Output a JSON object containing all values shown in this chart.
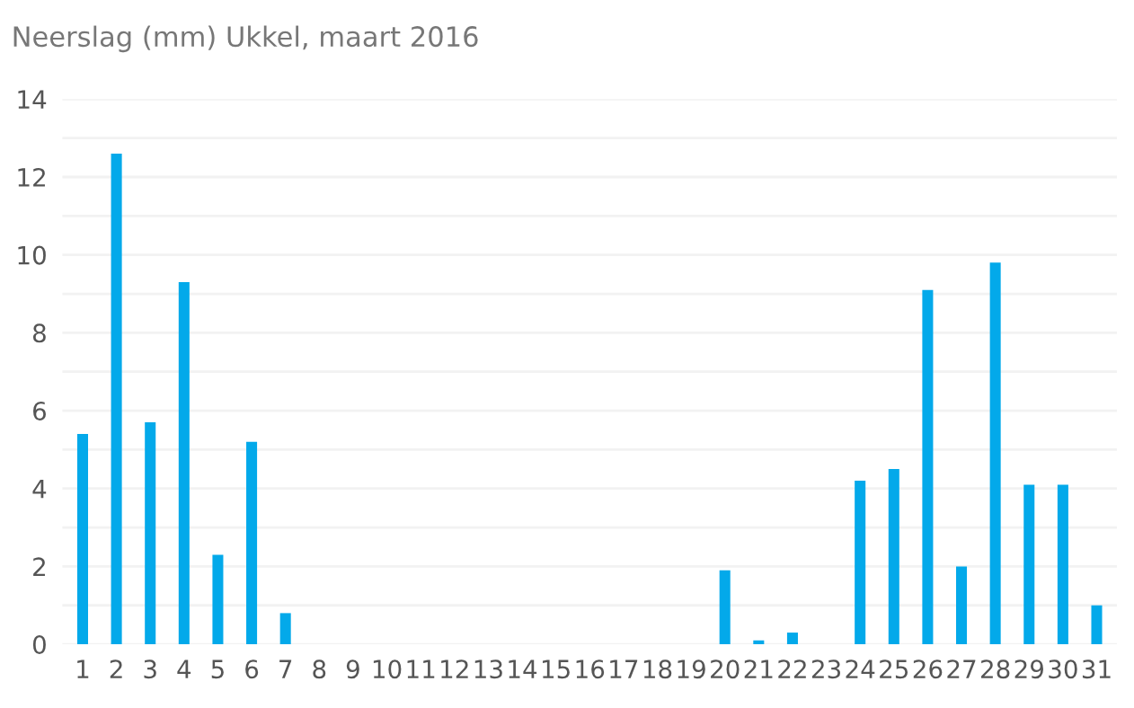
{
  "chart_data": {
    "type": "bar",
    "title": "Neerslag (mm) Ukkel, maart 2016",
    "categories": [
      "1",
      "2",
      "3",
      "4",
      "5",
      "6",
      "7",
      "8",
      "9",
      "10",
      "11",
      "12",
      "13",
      "14",
      "15",
      "16",
      "17",
      "18",
      "19",
      "20",
      "21",
      "22",
      "23",
      "24",
      "25",
      "26",
      "27",
      "28",
      "29",
      "30",
      "31"
    ],
    "values": [
      5.4,
      12.6,
      5.7,
      9.3,
      2.3,
      5.2,
      0.8,
      0,
      0,
      0,
      0,
      0,
      0,
      0,
      0,
      0,
      0,
      0,
      0,
      1.9,
      0.1,
      0.3,
      0,
      4.2,
      4.5,
      9.1,
      2.0,
      9.8,
      4.1,
      4.1,
      1.0
    ],
    "color": "#03a9ea",
    "ylim": [
      0,
      14
    ],
    "yticks": [
      0,
      {
        "value": 1,
        "label": null
      },
      2,
      {
        "value": 3,
        "label": null
      },
      4,
      {
        "value": 5,
        "label": null
      },
      6,
      {
        "value": 7,
        "label": null
      },
      8,
      {
        "value": 9,
        "label": null
      },
      10,
      {
        "value": 11,
        "label": null
      },
      12,
      {
        "value": 13,
        "label": null
      },
      14
    ],
    "grid": "y"
  }
}
